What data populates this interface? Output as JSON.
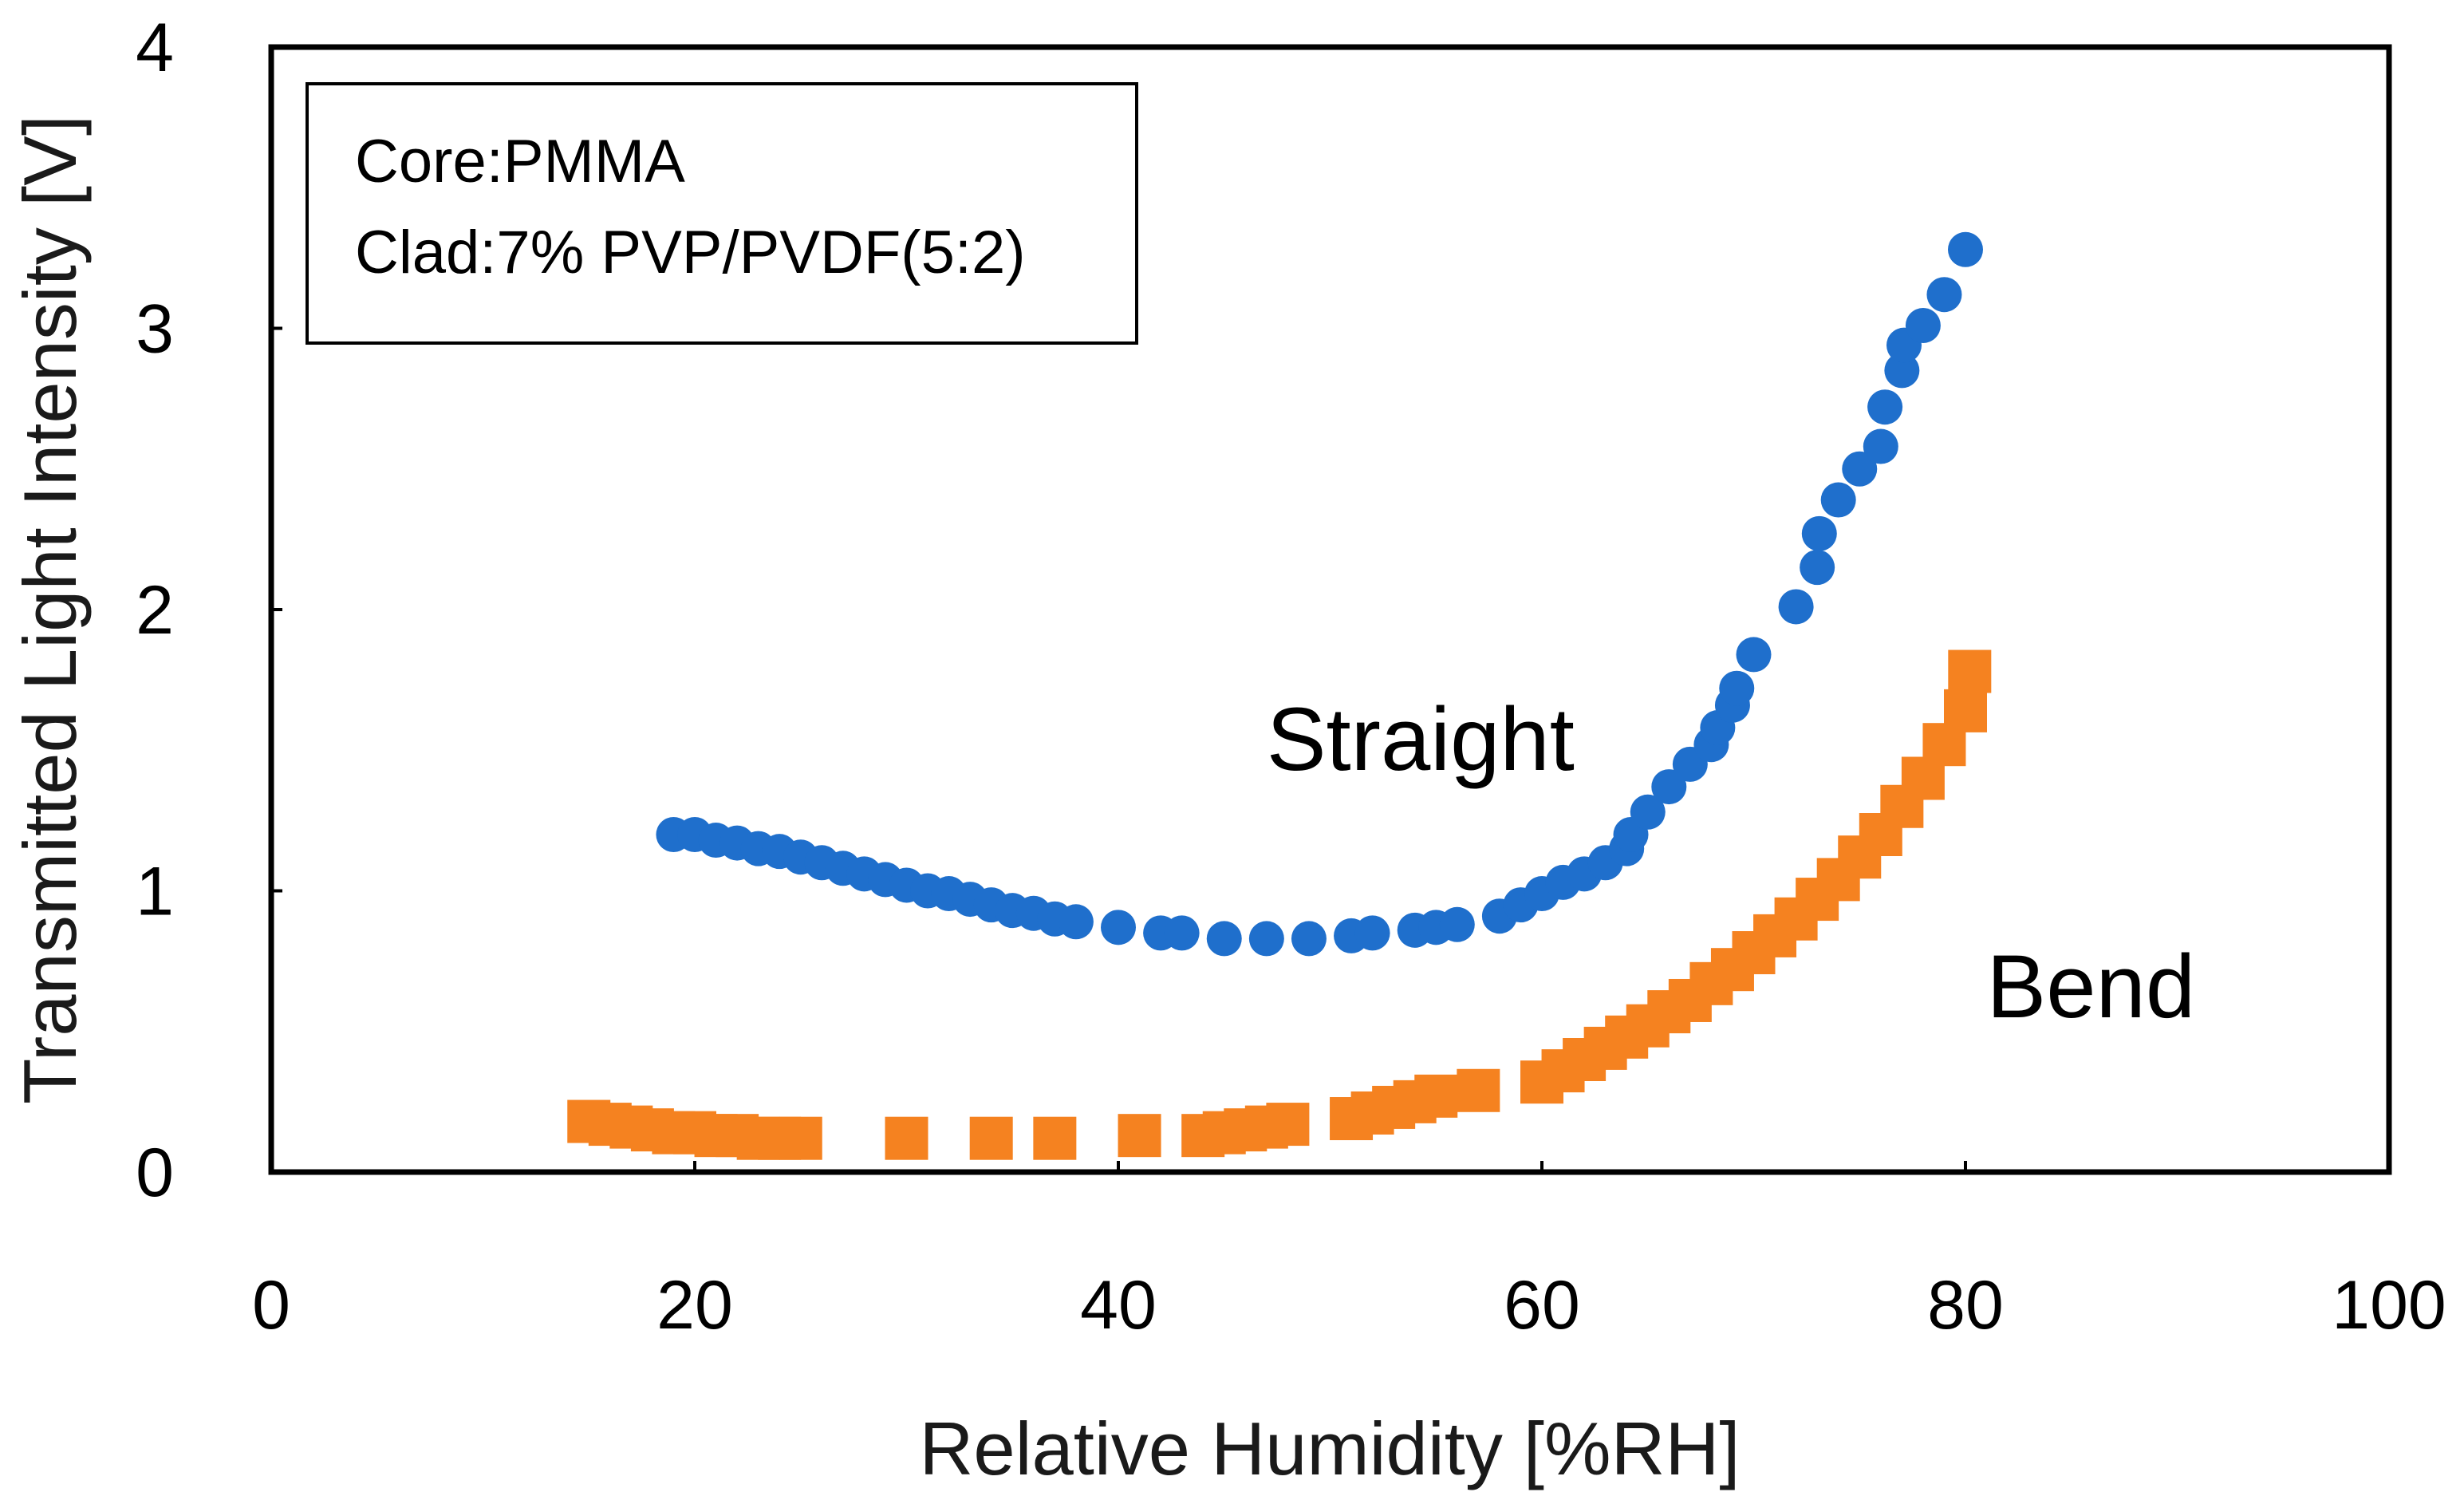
{
  "chart_data": {
    "type": "scatter",
    "xlabel": "Relative Humidity [%RH]",
    "ylabel": "Transmitted Light Intensity [V]",
    "xlim": [
      0,
      100
    ],
    "ylim": [
      0,
      4
    ],
    "x_ticks": [
      0,
      20,
      40,
      60,
      80,
      100
    ],
    "y_ticks": [
      0,
      1,
      2,
      3,
      4
    ],
    "grid": false,
    "info_box": {
      "line1": "Core:PMMA",
      "line2": "Clad:7% PVP/PVDF(5:2)"
    },
    "series": [
      {
        "name": "Straight",
        "marker": "circle",
        "color": "#1f6fcc",
        "x": [
          19,
          20,
          21,
          22,
          23,
          24,
          25,
          26,
          27,
          28,
          29,
          30,
          31,
          32,
          33,
          34,
          35,
          36,
          37,
          38,
          40,
          42,
          43,
          45,
          47,
          49,
          51,
          52,
          54,
          55,
          56,
          58,
          59,
          60,
          61,
          62,
          63,
          64,
          64.2,
          65,
          66,
          67,
          68,
          68.3,
          69,
          69.2,
          70,
          72,
          73,
          73.1,
          74,
          75,
          76,
          76.2,
          77,
          77.1,
          78,
          79,
          80
        ],
        "y": [
          1.2,
          1.2,
          1.18,
          1.17,
          1.15,
          1.14,
          1.12,
          1.1,
          1.08,
          1.06,
          1.04,
          1.02,
          1.0,
          0.99,
          0.97,
          0.95,
          0.93,
          0.92,
          0.9,
          0.89,
          0.87,
          0.85,
          0.85,
          0.83,
          0.83,
          0.83,
          0.84,
          0.85,
          0.86,
          0.87,
          0.88,
          0.91,
          0.95,
          0.99,
          1.03,
          1.06,
          1.1,
          1.15,
          1.2,
          1.28,
          1.37,
          1.45,
          1.52,
          1.58,
          1.66,
          1.72,
          1.84,
          2.01,
          2.15,
          2.27,
          2.39,
          2.5,
          2.58,
          2.72,
          2.85,
          2.94,
          3.01,
          3.12,
          3.28
        ]
      },
      {
        "name": "Bend",
        "marker": "square",
        "color": "#f58220",
        "x": [
          15,
          16,
          17,
          18,
          19,
          20,
          21,
          22,
          23,
          24,
          25,
          30,
          34,
          37,
          41,
          44,
          45,
          46,
          47,
          48,
          51,
          52,
          53,
          54,
          55,
          57,
          60,
          61,
          62,
          63,
          64,
          65,
          66,
          67,
          68,
          69,
          70,
          71,
          72,
          73,
          74,
          75,
          76,
          77,
          78,
          79,
          80,
          80.2
        ],
        "y": [
          0.18,
          0.17,
          0.16,
          0.15,
          0.14,
          0.14,
          0.13,
          0.13,
          0.12,
          0.12,
          0.12,
          0.12,
          0.12,
          0.12,
          0.13,
          0.13,
          0.14,
          0.15,
          0.16,
          0.17,
          0.19,
          0.21,
          0.23,
          0.25,
          0.27,
          0.29,
          0.32,
          0.36,
          0.4,
          0.44,
          0.48,
          0.52,
          0.57,
          0.61,
          0.67,
          0.72,
          0.78,
          0.84,
          0.9,
          0.97,
          1.04,
          1.12,
          1.2,
          1.3,
          1.4,
          1.52,
          1.64,
          1.78
        ]
      }
    ],
    "annotations": [
      {
        "text": "Straight",
        "x": 47,
        "y": 1.43
      },
      {
        "text": "Bend",
        "x": 81,
        "y": 0.55
      }
    ]
  }
}
